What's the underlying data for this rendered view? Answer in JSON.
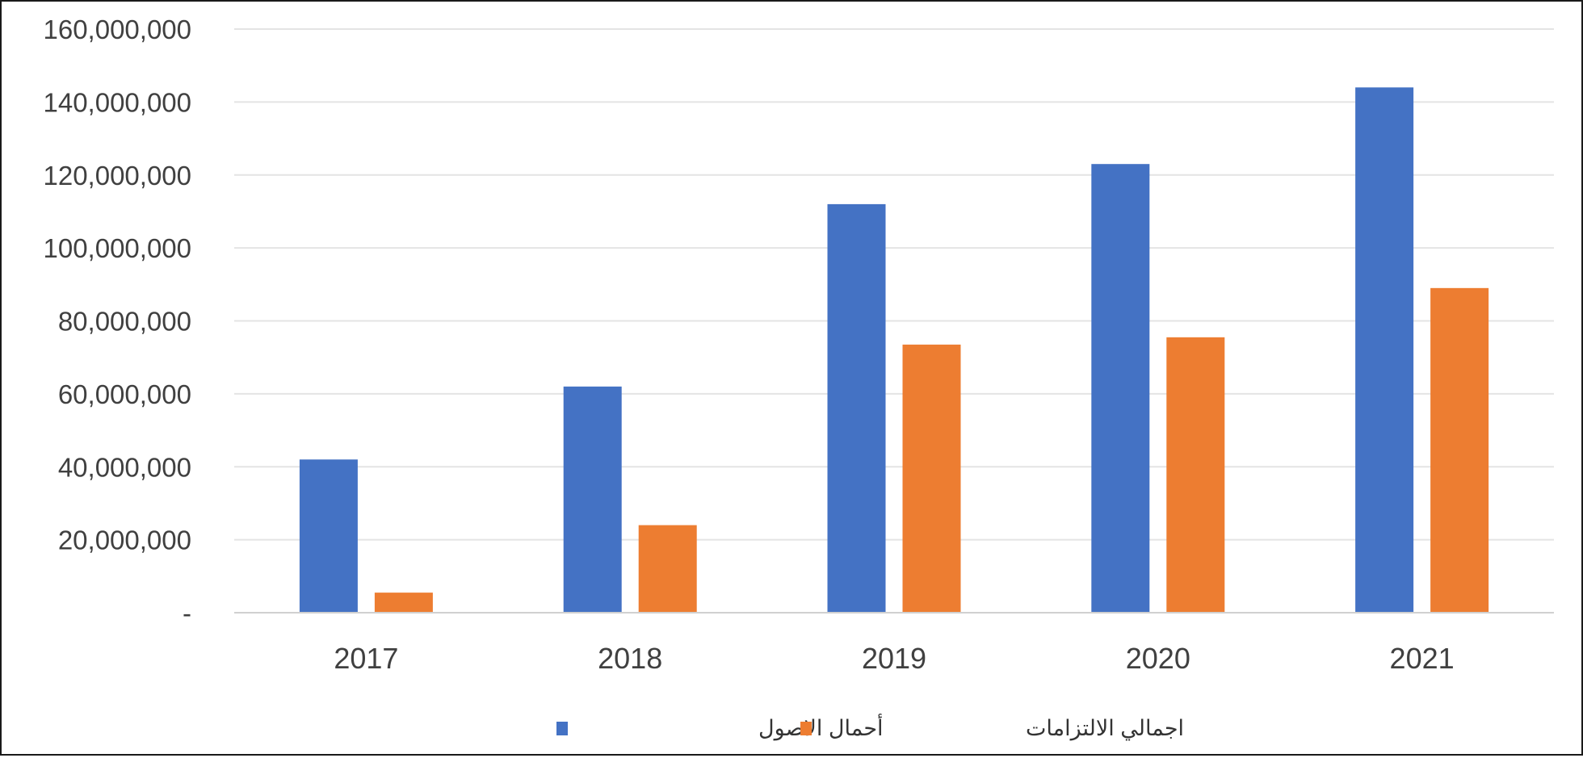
{
  "chart_data": {
    "type": "bar",
    "categories": [
      "2017",
      "2018",
      "2019",
      "2020",
      "2021"
    ],
    "series": [
      {
        "name": "أحمال الاصول",
        "color": "#4472C4",
        "values": [
          42000000,
          62000000,
          112000000,
          123000000,
          144000000
        ]
      },
      {
        "name": "اجمالي الالتزامات",
        "color": "#ED7D31",
        "values": [
          5500000,
          24000000,
          73500000,
          75500000,
          89000000
        ]
      }
    ],
    "title": "",
    "xlabel": "",
    "ylabel": "",
    "ylim": [
      0,
      160000000
    ],
    "yticks": [
      {
        "value": 0,
        "label": "-"
      },
      {
        "value": 20000000,
        "label": "20,000,000"
      },
      {
        "value": 40000000,
        "label": "40,000,000"
      },
      {
        "value": 60000000,
        "label": "60,000,000"
      },
      {
        "value": 80000000,
        "label": "80,000,000"
      },
      {
        "value": 100000000,
        "label": "100,000,000"
      },
      {
        "value": 120000000,
        "label": "120,000,000"
      },
      {
        "value": 140000000,
        "label": "140,000,000"
      },
      {
        "value": 160000000,
        "label": "160,000,000"
      }
    ],
    "grid": true,
    "legend_position": "bottom"
  }
}
